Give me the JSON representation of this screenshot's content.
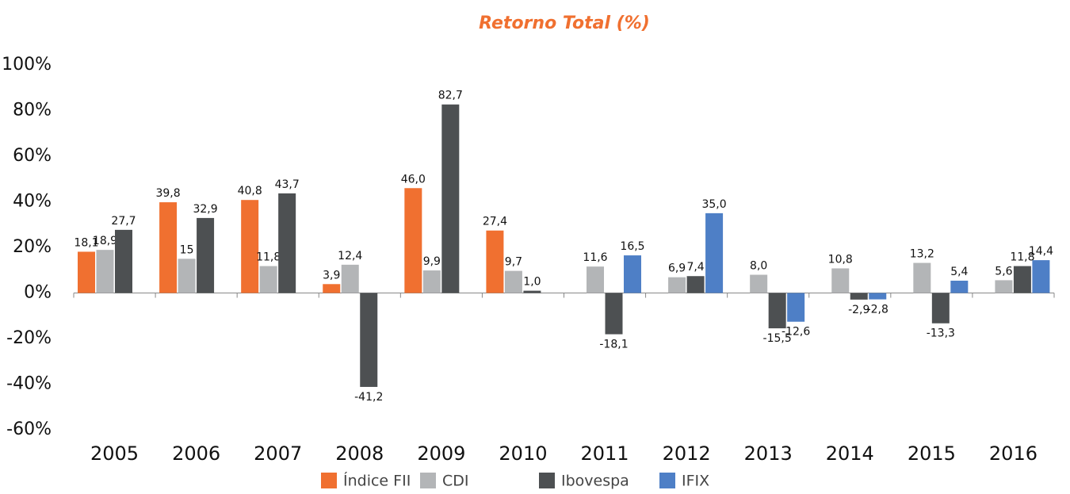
{
  "chart_data": {
    "type": "bar",
    "title": "Retorno Total (%)",
    "categories": [
      "2005",
      "2006",
      "2007",
      "2008",
      "2009",
      "2010",
      "2011",
      "2012",
      "2013",
      "2014",
      "2015",
      "2016"
    ],
    "series": [
      {
        "name": "Índice FII",
        "color": "#f07030",
        "values": [
          18.1,
          39.8,
          40.8,
          3.9,
          46.0,
          27.4,
          null,
          null,
          null,
          null,
          null,
          null
        ],
        "value_labels": [
          "18,1",
          "39,8",
          "40,8",
          "3,9",
          "46,0",
          "27,4",
          null,
          null,
          null,
          null,
          null,
          null
        ]
      },
      {
        "name": "CDI",
        "color": "#b3b5b7",
        "values": [
          18.9,
          15,
          11.8,
          12.4,
          9.9,
          9.7,
          11.6,
          6.9,
          8.0,
          10.8,
          13.2,
          5.6
        ],
        "value_labels": [
          "18,9",
          "15",
          "11,8",
          "12,4",
          "9,9",
          "9,7",
          "11,6",
          "6,9",
          "8,0",
          "10,8",
          "13,2",
          "5,6"
        ]
      },
      {
        "name": "Ibovespa",
        "color": "#4d5052",
        "values": [
          27.7,
          32.9,
          43.7,
          -41.2,
          82.7,
          1.0,
          -18.1,
          7.4,
          -15.5,
          -2.9,
          -13.3,
          11.8
        ],
        "value_labels": [
          "27,7",
          "32,9",
          "43,7",
          "-41,2",
          "82,7",
          "1,0",
          "-18,1",
          "7,4",
          "-15,5",
          "-2,9",
          "-13,3",
          "11,8"
        ]
      },
      {
        "name": "IFIX",
        "color": "#4e7fc6",
        "values": [
          null,
          null,
          null,
          null,
          null,
          null,
          16.5,
          35.0,
          -12.6,
          -2.8,
          5.4,
          14.4
        ],
        "value_labels": [
          null,
          null,
          null,
          null,
          null,
          null,
          "16,5",
          "35,0",
          "-12,6",
          "-2,8",
          "5,4",
          "14,4"
        ]
      }
    ],
    "ylim": [
      -60,
      100
    ],
    "yticks": [
      {
        "value": -60,
        "label": "-60%"
      },
      {
        "value": -40,
        "label": "-40%"
      },
      {
        "value": -20,
        "label": "-20%"
      },
      {
        "value": 0,
        "label": "0%"
      },
      {
        "value": 20,
        "label": "20%"
      },
      {
        "value": 40,
        "label": "40%"
      },
      {
        "value": 60,
        "label": "60%"
      },
      {
        "value": 80,
        "label": "80%"
      },
      {
        "value": 100,
        "label": "100%"
      }
    ],
    "grid": false,
    "legend": "bottom"
  }
}
